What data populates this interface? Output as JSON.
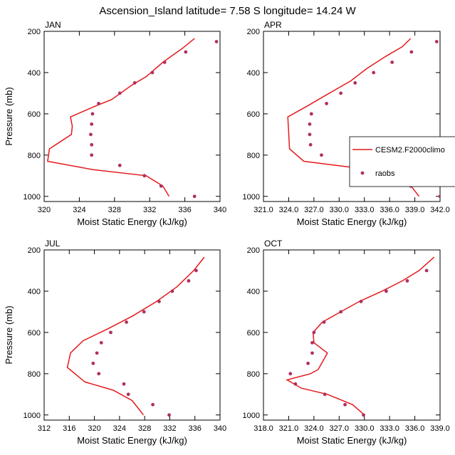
{
  "figure": {
    "title": "Ascension_Island  latitude= 7.58 S longitude= 14.24 W"
  },
  "colors": {
    "model": "#e31a1c",
    "obs": "#b03060",
    "axis": "#000000"
  },
  "chart_data": [
    {
      "type": "line",
      "panel_label": "JAN",
      "xlabel": "Moist Static Energy (kJ/kg)",
      "ylabel": "Pressure (mb)",
      "xlim": [
        320,
        340
      ],
      "ylim": [
        200,
        1025
      ],
      "y_inverted": true,
      "xticks": [
        320,
        324,
        328,
        332,
        336,
        340
      ],
      "xtick_labels": [
        "320",
        "324",
        "328",
        "332",
        "336",
        "340"
      ],
      "yticks": [
        200,
        400,
        600,
        800,
        1000
      ],
      "ytick_labels": [
        "200",
        "400",
        "600",
        "800",
        "1000"
      ],
      "series": [
        {
          "name": "CESM2.F2000climo",
          "kind": "line",
          "x": [
            337.1,
            335.8,
            333.5,
            331.6,
            330.0,
            327.7,
            325.4,
            323.0,
            323.2,
            323.1,
            320.6,
            320.4,
            325.5,
            331.6,
            333.5,
            334.2
          ],
          "y": [
            235,
            280,
            350,
            420,
            460,
            530,
            570,
            615,
            660,
            700,
            770,
            830,
            870,
            900,
            950,
            1000
          ]
        },
        {
          "name": "raobs",
          "kind": "points",
          "x": [
            339.6,
            336.1,
            333.7,
            332.3,
            330.3,
            328.6,
            326.2,
            325.5,
            325.4,
            325.3,
            325.4,
            325.4,
            328.6,
            331.4,
            333.3,
            337.1
          ],
          "y": [
            250,
            300,
            350,
            400,
            450,
            500,
            550,
            600,
            650,
            700,
            750,
            800,
            850,
            900,
            950,
            1000
          ]
        }
      ]
    },
    {
      "type": "line",
      "panel_label": "APR",
      "xlabel": "Moist Static Energy (kJ/kg)",
      "ylabel": "Pressure (mb)",
      "xlim": [
        321,
        342
      ],
      "ylim": [
        200,
        1025
      ],
      "y_inverted": true,
      "xticks": [
        321,
        324,
        327,
        330,
        333,
        336,
        339,
        342
      ],
      "xtick_labels": [
        "321.0",
        "324.0",
        "327.0",
        "330.0",
        "333.0",
        "336.0",
        "339.0",
        "342.0"
      ],
      "yticks": [
        200,
        400,
        600,
        800,
        1000
      ],
      "ytick_labels": [
        "200",
        "400",
        "600",
        "800",
        "1000"
      ],
      "legend": {
        "location": "right",
        "entries": [
          "CESM2.F2000climo",
          "raobs"
        ]
      },
      "series": [
        {
          "name": "CESM2.F2000climo",
          "kind": "line",
          "x": [
            338.5,
            337.5,
            335.6,
            333.3,
            331.4,
            328.4,
            326.3,
            323.9,
            324.0,
            324.1,
            325.8,
            333.6,
            337.6,
            339.5
          ],
          "y": [
            235,
            275,
            320,
            380,
            440,
            510,
            560,
            615,
            690,
            770,
            830,
            870,
            900,
            1000
          ]
        },
        {
          "name": "raobs",
          "kind": "points",
          "x": [
            341.6,
            338.6,
            336.3,
            334.1,
            331.9,
            330.2,
            328.5,
            326.7,
            326.5,
            326.5,
            326.6,
            327.9,
            331.4,
            334.6,
            338.5,
            342.0
          ],
          "y": [
            250,
            300,
            350,
            400,
            450,
            500,
            550,
            600,
            650,
            700,
            750,
            800,
            850,
            900,
            950,
            1000
          ]
        }
      ]
    },
    {
      "type": "line",
      "panel_label": "JUL",
      "xlabel": "Moist Static Energy (kJ/kg)",
      "ylabel": "Pressure (mb)",
      "xlim": [
        312,
        340
      ],
      "ylim": [
        200,
        1025
      ],
      "y_inverted": true,
      "xticks": [
        312,
        316,
        320,
        324,
        328,
        332,
        336,
        340
      ],
      "xtick_labels": [
        "312",
        "316",
        "320",
        "324",
        "328",
        "332",
        "336",
        "340"
      ],
      "yticks": [
        200,
        400,
        600,
        800,
        1000
      ],
      "ytick_labels": [
        "200",
        "400",
        "600",
        "800",
        "1000"
      ],
      "series": [
        {
          "name": "CESM2.F2000climo",
          "kind": "line",
          "x": [
            337.5,
            335.8,
            333.1,
            329.9,
            326.1,
            322.3,
            318.2,
            316.2,
            315.7,
            318.5,
            323.0,
            326.0,
            327.3,
            327.8
          ],
          "y": [
            235,
            300,
            380,
            450,
            520,
            580,
            640,
            700,
            770,
            840,
            880,
            930,
            980,
            1000
          ]
        },
        {
          "name": "raobs",
          "kind": "points",
          "x": [
            336.2,
            335.0,
            332.4,
            330.3,
            327.9,
            325.1,
            322.6,
            321.1,
            320.4,
            319.8,
            320.7,
            324.7,
            325.4,
            329.3,
            331.9
          ],
          "y": [
            300,
            350,
            400,
            450,
            500,
            550,
            600,
            650,
            700,
            750,
            800,
            850,
            900,
            950,
            1000
          ]
        }
      ]
    },
    {
      "type": "line",
      "panel_label": "OCT",
      "xlabel": "Moist Static Energy (kJ/kg)",
      "ylabel": "Pressure (mb)",
      "xlim": [
        318,
        339
      ],
      "ylim": [
        200,
        1025
      ],
      "y_inverted": true,
      "xticks": [
        318,
        321,
        324,
        327,
        330,
        333,
        336,
        339
      ],
      "xtick_labels": [
        "318.0",
        "321.0",
        "324.0",
        "327.0",
        "330.0",
        "333.0",
        "336.0",
        "339.0"
      ],
      "yticks": [
        200,
        400,
        600,
        800,
        1000
      ],
      "ytick_labels": [
        "200",
        "400",
        "600",
        "800",
        "1000"
      ],
      "series": [
        {
          "name": "CESM2.F2000climo",
          "kind": "line",
          "x": [
            338.3,
            336.5,
            334.5,
            332.1,
            329.4,
            327.2,
            325.0,
            323.9,
            324.0,
            325.6,
            324.5,
            323.6,
            320.8,
            322.5,
            325.6,
            328.6,
            330.0
          ],
          "y": [
            235,
            300,
            350,
            400,
            450,
            500,
            550,
            600,
            650,
            700,
            780,
            800,
            830,
            870,
            900,
            950,
            1000
          ]
        },
        {
          "name": "raobs",
          "kind": "points",
          "x": [
            337.4,
            335.1,
            332.6,
            329.6,
            327.2,
            325.2,
            324.0,
            323.8,
            323.8,
            323.3,
            321.2,
            321.8,
            325.3,
            327.7,
            329.9
          ],
          "y": [
            300,
            350,
            400,
            450,
            500,
            550,
            600,
            650,
            700,
            750,
            800,
            850,
            900,
            950,
            1000
          ]
        }
      ]
    }
  ]
}
